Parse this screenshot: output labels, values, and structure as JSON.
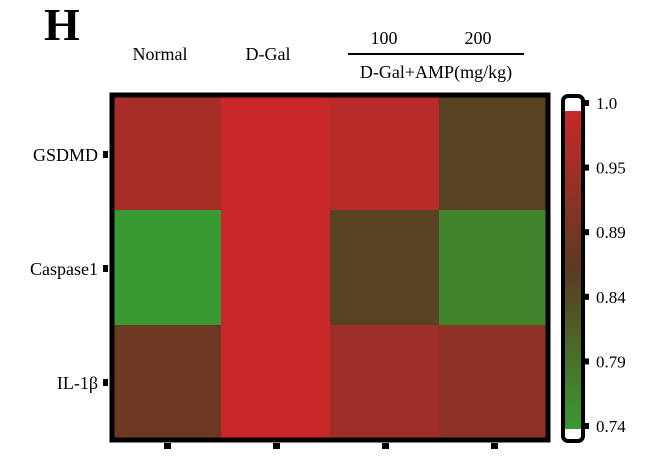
{
  "chart_data": {
    "type": "heatmap",
    "panel_label": "H",
    "columns": [
      "Normal",
      "D-Gal",
      "100",
      "200"
    ],
    "group_label": "D-Gal+AMP(mg/kg)",
    "rows": [
      "GSDMD",
      "Caspase1",
      "IL-1β"
    ],
    "values": [
      [
        0.96,
        1.0,
        0.98,
        0.86
      ],
      [
        0.74,
        1.0,
        0.86,
        0.77
      ],
      [
        0.89,
        1.0,
        0.95,
        0.93
      ]
    ],
    "colorbar": {
      "min": 0.74,
      "max": 1.0,
      "ticks": [
        "1.0",
        "0.95",
        "0.89",
        "0.84",
        "0.79",
        "0.74"
      ],
      "low_color": "#3a9a32",
      "mid_color": "#5b3b20",
      "high_color": "#c8282a"
    }
  }
}
